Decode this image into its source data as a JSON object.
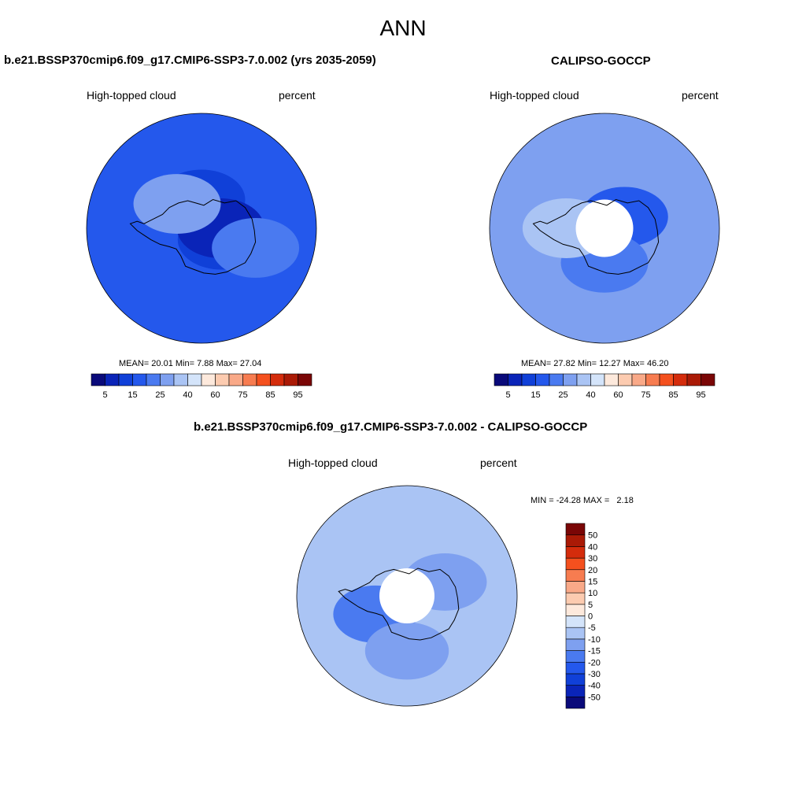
{
  "page": {
    "main_title": "ANN"
  },
  "colors": {
    "cbar_seq": [
      "#0a0a7a",
      "#0a24b8",
      "#1040d8",
      "#2458ec",
      "#4a7af0",
      "#7ea0f0",
      "#aac4f4",
      "#d4e4fa",
      "#fde9dc",
      "#fccbb0",
      "#f9a988",
      "#f77c50",
      "#f4501e",
      "#d42c0c",
      "#aa1a06",
      "#7a0606"
    ],
    "cbar_diff": [
      "#0a0a7a",
      "#0a24b8",
      "#1040d8",
      "#2458ec",
      "#4a7af0",
      "#7ea0f0",
      "#aac4f4",
      "#d4e4fa",
      "#fde9dc",
      "#fccbb0",
      "#f9a988",
      "#f77c50",
      "#f4501e",
      "#d42c0c",
      "#aa1a06",
      "#7a0606"
    ],
    "ocean": "#ffffff",
    "coast": "#000000"
  },
  "chart_data": [
    {
      "type": "heatmap",
      "projection": "south-polar-stereographic",
      "title": "b.e21.BSSP370cmip6.f09_g17.CMIP6-SSP3-7.0.002 (yrs 2035-2059)",
      "variable": "High-topped cloud",
      "units": "percent",
      "stats": {
        "mean_label": "MEAN=",
        "mean": "20.01",
        "min_label": "Min=",
        "min": "7.88",
        "max_label": "Max=",
        "max": "27.04"
      },
      "colorbar": {
        "levels": [
          "5",
          "15",
          "25",
          "40",
          "60",
          "75",
          "85",
          "95"
        ],
        "orientation": "horizontal"
      },
      "field": {
        "background_level": 3,
        "regions": [
          {
            "lon": 180,
            "lat": -75,
            "level": 2
          },
          {
            "lon": 60,
            "lat": -78,
            "level": 2
          },
          {
            "lon": 90,
            "lat": -80,
            "level": 1
          },
          {
            "lon": -135,
            "lat": -72,
            "level": 5
          },
          {
            "lon": 70,
            "lat": -60,
            "level": 4
          }
        ]
      },
      "has_missing_pole": false
    },
    {
      "type": "heatmap",
      "projection": "south-polar-stereographic",
      "title": "CALIPSO-GOCCP",
      "variable": "High-topped cloud",
      "units": "percent",
      "stats": {
        "mean_label": "MEAN=",
        "mean": "27.82",
        "min_label": "Min=",
        "min": "12.27",
        "max_label": "Max=",
        "max": "46.20"
      },
      "colorbar": {
        "levels": [
          "5",
          "15",
          "25",
          "40",
          "60",
          "75",
          "85",
          "95"
        ],
        "orientation": "horizontal"
      },
      "field": {
        "background_level": 5,
        "regions": [
          {
            "lon": 120,
            "lat": -78,
            "level": 3
          },
          {
            "lon": 0,
            "lat": -72,
            "level": 4
          },
          {
            "lon": -90,
            "lat": -70,
            "level": 6
          }
        ]
      },
      "has_missing_pole": true
    },
    {
      "type": "heatmap",
      "projection": "south-polar-stereographic",
      "title": "b.e21.BSSP370cmip6.f09_g17.CMIP6-SSP3-7.0.002 - CALIPSO-GOCCP",
      "variable": "High-topped cloud",
      "units": "percent",
      "stats": {
        "text": "MIN = -24.28 MAX =   2.18"
      },
      "colorbar": {
        "levels": [
          "-50",
          "-40",
          "-30",
          "-20",
          "-15",
          "-10",
          "-5",
          "0",
          "5",
          "10",
          "15",
          "20",
          "30",
          "40",
          "50"
        ],
        "orientation": "vertical"
      },
      "field": {
        "background_level": 6,
        "regions": [
          {
            "lon": -60,
            "lat": -70,
            "level": 4
          },
          {
            "lon": 110,
            "lat": -68,
            "level": 5
          },
          {
            "lon": 0,
            "lat": -60,
            "level": 5
          }
        ]
      },
      "has_missing_pole": true
    }
  ]
}
